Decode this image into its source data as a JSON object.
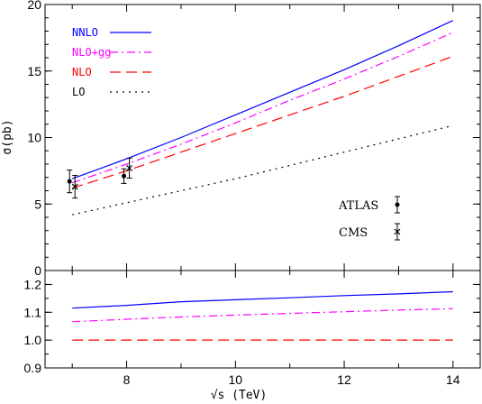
{
  "chart_data": [
    {
      "type": "line",
      "panel": "main",
      "xlabel": "√s (TeV)",
      "ylabel": "σ(pb)",
      "xlim": [
        6.5,
        14.5
      ],
      "ylim": [
        0,
        20
      ],
      "yticks": [
        0,
        5,
        10,
        15,
        20
      ],
      "grid": false,
      "legend_position": "top-left",
      "series": [
        {
          "name": "NNLO",
          "color": "#0000ff",
          "style": "solid",
          "x": [
            7,
            8,
            9,
            10,
            11,
            12,
            13,
            14
          ],
          "y": [
            6.9,
            8.4,
            10.0,
            11.7,
            13.4,
            15.1,
            16.9,
            18.8
          ]
        },
        {
          "name": "NLO+gg",
          "color": "#ff00ff",
          "style": "dashdot",
          "x": [
            7,
            8,
            9,
            10,
            11,
            12,
            13,
            14
          ],
          "y": [
            6.6,
            8.0,
            9.5,
            11.1,
            12.8,
            14.4,
            16.1,
            17.9
          ]
        },
        {
          "name": "NLO",
          "color": "#ff0000",
          "style": "dashed",
          "x": [
            7,
            8,
            9,
            10,
            11,
            12,
            13,
            14
          ],
          "y": [
            6.2,
            7.5,
            8.9,
            10.3,
            11.7,
            13.1,
            14.6,
            16.1
          ]
        },
        {
          "name": "LO",
          "color": "#000000",
          "style": "dotted",
          "x": [
            7,
            8,
            9,
            10,
            11,
            12,
            13,
            14
          ],
          "y": [
            4.2,
            5.1,
            6.0,
            6.9,
            7.9,
            8.9,
            9.9,
            10.9
          ]
        }
      ],
      "data_points": [
        {
          "name": "ATLAS",
          "marker": "circle",
          "x": 6.95,
          "y": 6.7,
          "yerr": 0.85
        },
        {
          "name": "ATLAS",
          "marker": "circle",
          "x": 7.95,
          "y": 7.1,
          "yerr": 0.55
        },
        {
          "name": "CMS",
          "marker": "cross",
          "x": 7.05,
          "y": 6.3,
          "yerr": 0.85
        },
        {
          "name": "CMS",
          "marker": "cross",
          "x": 8.05,
          "y": 7.7,
          "yerr": 0.75
        }
      ],
      "data_legend": [
        {
          "name": "ATLAS",
          "marker": "circle"
        },
        {
          "name": "CMS",
          "marker": "cross"
        }
      ]
    },
    {
      "type": "line",
      "panel": "ratio",
      "xlabel": "√s (TeV)",
      "ylabel": "",
      "xlim": [
        6.5,
        14.5
      ],
      "ylim": [
        0.9,
        1.25
      ],
      "yticks": [
        0.9,
        1.0,
        1.1,
        1.2
      ],
      "xticks": [
        8,
        10,
        12,
        14
      ],
      "grid": false,
      "series": [
        {
          "name": "NNLO",
          "color": "#0000ff",
          "style": "solid",
          "x": [
            7,
            8,
            9,
            10,
            11,
            12,
            13,
            14
          ],
          "y": [
            1.115,
            1.125,
            1.138,
            1.145,
            1.152,
            1.16,
            1.166,
            1.174
          ]
        },
        {
          "name": "NLO+gg",
          "color": "#ff00ff",
          "style": "dashdot",
          "x": [
            7,
            8,
            9,
            10,
            11,
            12,
            13,
            14
          ],
          "y": [
            1.066,
            1.075,
            1.083,
            1.09,
            1.096,
            1.102,
            1.108,
            1.113
          ]
        },
        {
          "name": "NLO",
          "color": "#ff0000",
          "style": "dashed",
          "x": [
            7,
            8,
            9,
            10,
            11,
            12,
            13,
            14
          ],
          "y": [
            1.0,
            1.0,
            1.0,
            1.0,
            1.0,
            1.0,
            1.0,
            1.0
          ]
        }
      ]
    }
  ]
}
